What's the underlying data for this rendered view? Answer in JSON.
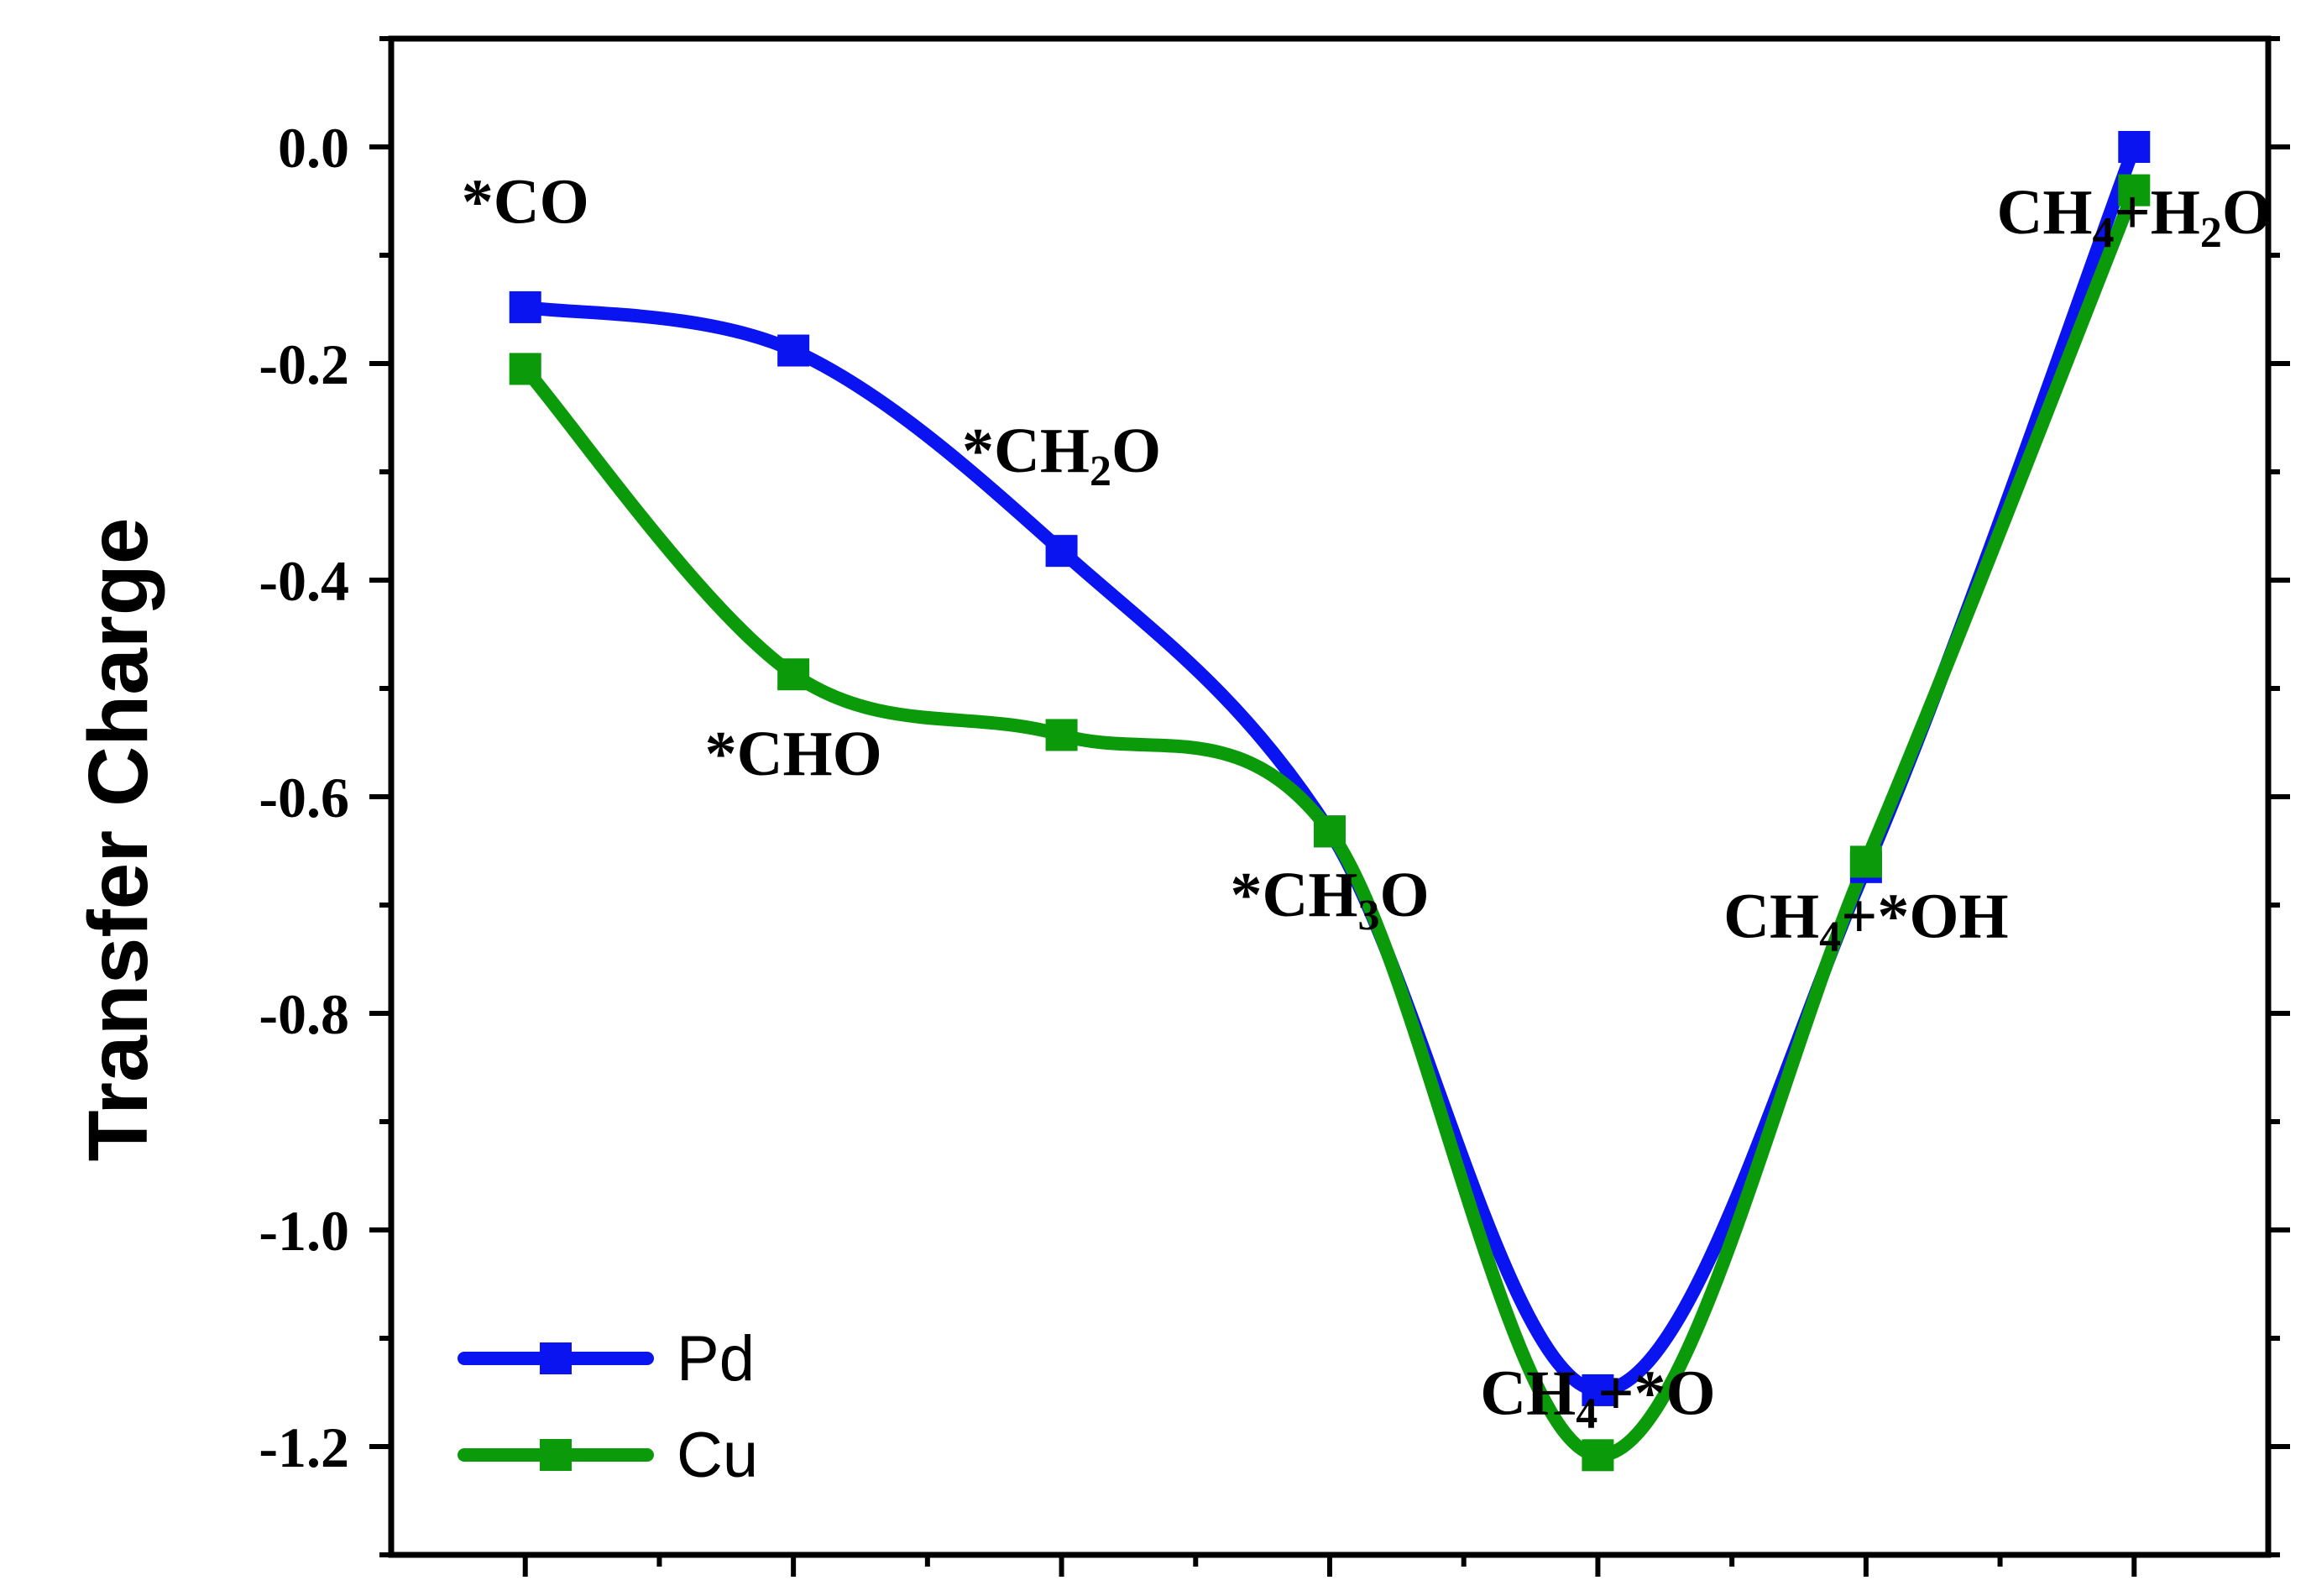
{
  "chart_data": {
    "type": "line",
    "title": "",
    "xlabel": "",
    "ylabel": "Transfer Charge",
    "ylim": [
      -1.3,
      0.1
    ],
    "yticks": [
      0.0,
      -0.2,
      -0.4,
      -0.6,
      -0.8,
      -1.0,
      -1.2
    ],
    "ytick_labels": [
      "0.0",
      "-0.2",
      "-0.4",
      "-0.6",
      "-0.8",
      "-1.0",
      "-1.2"
    ],
    "x": [
      1,
      2,
      3,
      4,
      5,
      6,
      7
    ],
    "xlim": [
      0.5,
      7.5
    ],
    "categories": [
      "*CO",
      "*CHO",
      "*CH2O",
      "*CH3O",
      "CH4+*O",
      "CH4+*OH",
      "CH4+H2O"
    ],
    "series": [
      {
        "name": "Pd",
        "color": "#0a14f0",
        "values": [
          -0.148,
          -0.188,
          -0.373,
          -0.632,
          -1.148,
          -0.665,
          0.0
        ]
      },
      {
        "name": "Cu",
        "color": "#0a9a0a",
        "values": [
          -0.205,
          -0.487,
          -0.543,
          -0.632,
          -1.208,
          -0.66,
          -0.04
        ]
      }
    ],
    "annotations": [
      {
        "id": "co",
        "x": 1,
        "y": -0.07,
        "parts": [
          {
            "t": "*CO"
          }
        ]
      },
      {
        "id": "cho",
        "x": 2,
        "y": -0.58,
        "parts": [
          {
            "t": "*CHO"
          }
        ]
      },
      {
        "id": "ch2o",
        "x": 3,
        "y": -0.3,
        "parts": [
          {
            "t": "*CH"
          },
          {
            "t": "2",
            "sub": true
          },
          {
            "t": "O"
          }
        ]
      },
      {
        "id": "ch3o",
        "x": 4,
        "y": -0.71,
        "parts": [
          {
            "t": "*CH"
          },
          {
            "t": "3",
            "sub": true
          },
          {
            "t": "O"
          }
        ]
      },
      {
        "id": "ch4o",
        "x": 5,
        "y": -1.17,
        "parts": [
          {
            "t": "CH"
          },
          {
            "t": "4",
            "sub": true
          },
          {
            "t": "+*O"
          }
        ]
      },
      {
        "id": "ch4oh",
        "x": 6,
        "y": -0.73,
        "parts": [
          {
            "t": "CH"
          },
          {
            "t": "4",
            "sub": true
          },
          {
            "t": "+*OH"
          }
        ]
      },
      {
        "id": "ch4h2o",
        "x": 7,
        "y": -0.08,
        "parts": [
          {
            "t": "CH"
          },
          {
            "t": "4",
            "sub": true
          },
          {
            "t": "+H"
          },
          {
            "t": "2",
            "sub": true
          },
          {
            "t": "O"
          }
        ]
      }
    ],
    "legend": {
      "position": "bottom-left",
      "entries": [
        "Pd",
        "Cu"
      ]
    },
    "grid": false
  }
}
